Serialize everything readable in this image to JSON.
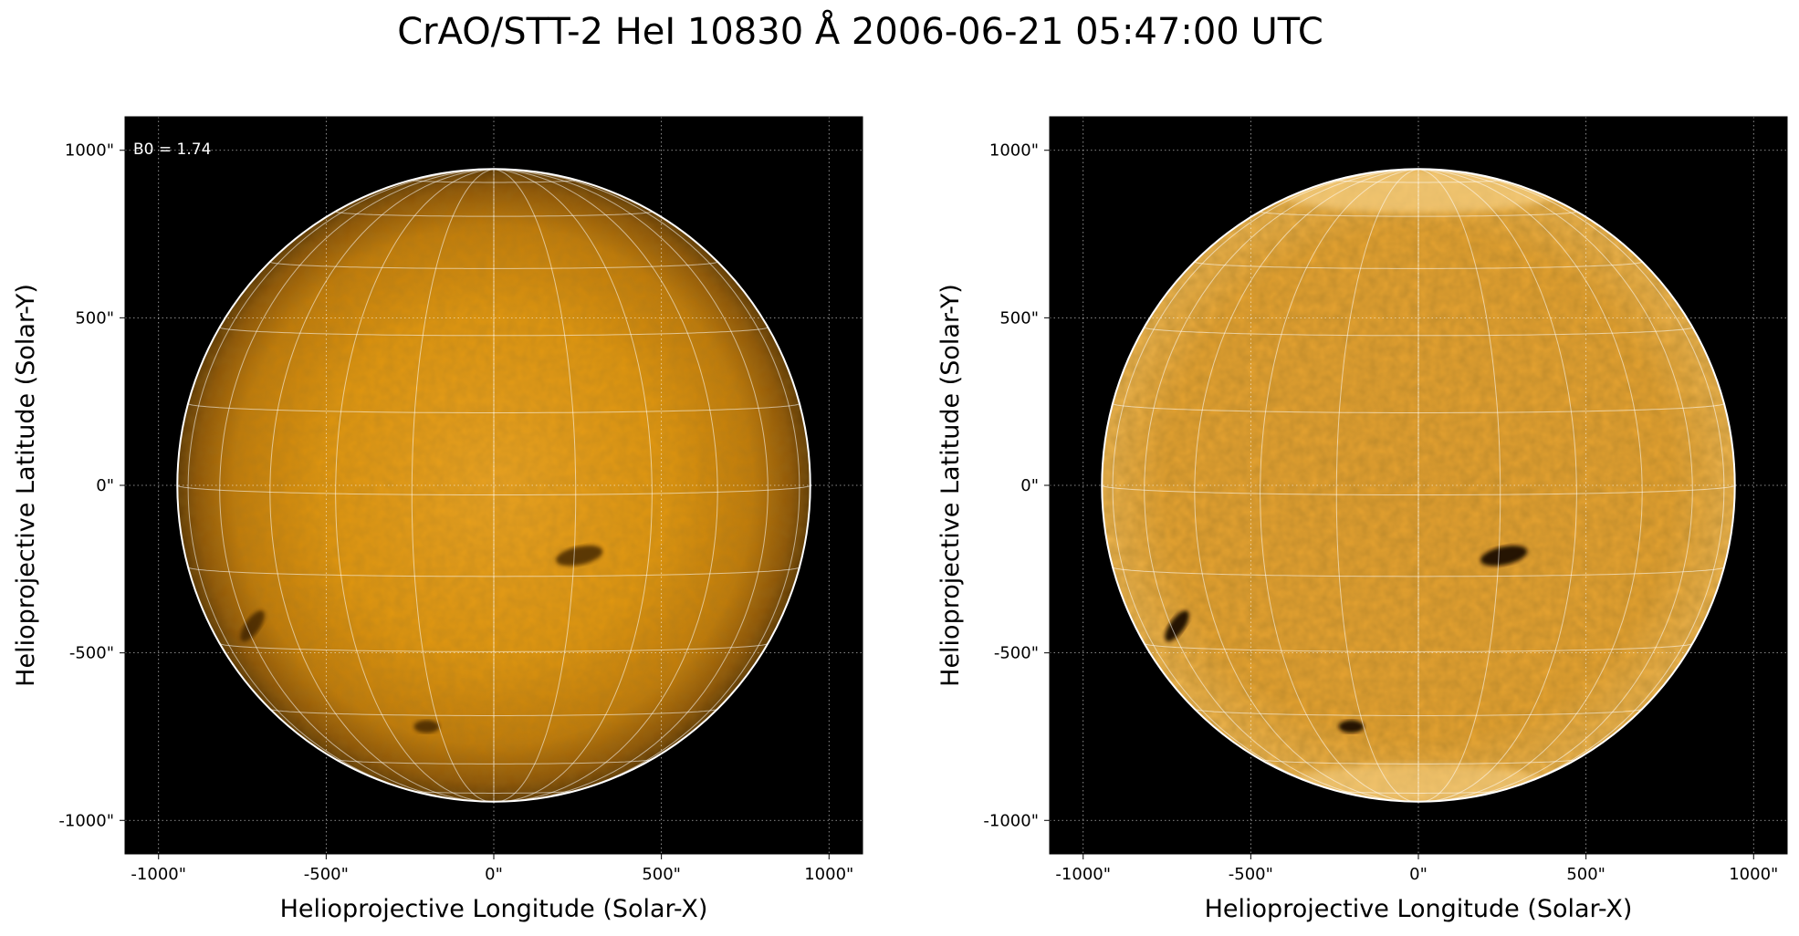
{
  "title": "CrAO/STT-2 HeI 10830 Å 2006-06-21 05:47:00 UTC",
  "colors": {
    "background": "#000000",
    "sun_mid": "#e39a12",
    "sun_edge": "#7a4a06",
    "grid": "#ffffff",
    "limb": "#ffffff"
  },
  "panels": [
    {
      "xlabel": "Helioprojective Longitude (Solar-X)",
      "ylabel": "Helioprojective Latitude (Solar-Y)",
      "annotation": "B0 = 1.74",
      "xticks": [
        "-1000\"",
        "-500\"",
        "0\"",
        "500\"",
        "1000\""
      ],
      "yticks": [
        "1000\"",
        "500\"",
        "0\"",
        "-500\"",
        "-1000\""
      ],
      "variant": "raw-limb-darkened"
    },
    {
      "xlabel": "Helioprojective Longitude (Solar-X)",
      "ylabel": "Helioprojective Latitude (Solar-Y)",
      "annotation": "",
      "xticks": [
        "-1000\"",
        "-500\"",
        "0\"",
        "500\"",
        "1000\""
      ],
      "yticks": [
        "1000\"",
        "500\"",
        "0\"",
        "-500\"",
        "-1000\""
      ],
      "variant": "limb-corrected"
    }
  ],
  "solar_radius_arcsec": 944,
  "axis_limits_arcsec": [
    -1100,
    1100
  ],
  "tick_values_arcsec": [
    -1000,
    -500,
    0,
    500,
    1000
  ],
  "grid_spacing_deg": 15,
  "features": [
    {
      "name": "active-region",
      "x": 255,
      "y": -210
    },
    {
      "name": "filament",
      "x": -720,
      "y": -420
    },
    {
      "name": "plage-dark-patch",
      "x": -200,
      "y": -720
    }
  ]
}
